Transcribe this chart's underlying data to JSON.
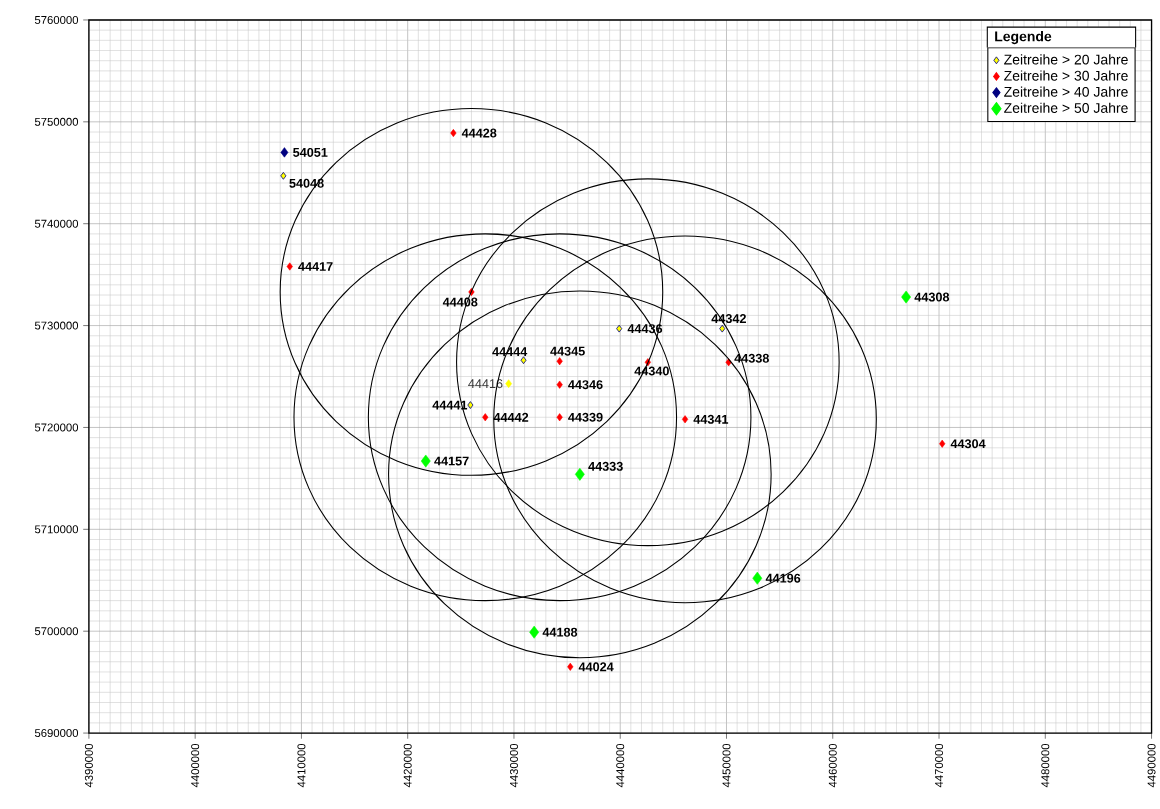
{
  "chart_data": {
    "type": "scatter",
    "legend_title": "Legende",
    "legend": "top right",
    "grid": true,
    "marker": "diamond",
    "xlim": [
      4390000,
      4490000
    ],
    "ylim": [
      5690000,
      5760000
    ],
    "xticks": [
      4390000,
      4400000,
      4410000,
      4420000,
      4430000,
      4440000,
      4450000,
      4460000,
      4470000,
      4480000,
      4490000
    ],
    "yticks": [
      5690000,
      5700000,
      5710000,
      5720000,
      5730000,
      5740000,
      5750000,
      5760000
    ],
    "series": [
      {
        "name": "Zeitreihe > 20 Jahre",
        "color": "#ffff00",
        "x": [
          4408300,
          4430900,
          4439900,
          4449600,
          4425900
        ],
        "values": [
          5744700,
          5726600,
          5729700,
          5729700,
          5722200
        ]
      },
      {
        "name": "Zeitreihe > 30 Jahre",
        "color": "#ff0000",
        "x": [
          4424300,
          4408900,
          4426000,
          4434300,
          4434300,
          4442600,
          4450200,
          4427300,
          4434300,
          4446100,
          4435300,
          4470300
        ],
        "values": [
          5748900,
          5735800,
          5733300,
          5726500,
          5724200,
          5726400,
          5726400,
          5721000,
          5721000,
          5720800,
          5696500,
          5718400
        ]
      },
      {
        "name": "Zeitreihe > 40 Jahre",
        "color": "#000080",
        "x": [
          4408400
        ],
        "values": [
          5747000
        ]
      },
      {
        "name": "Zeitreihe > 50 Jahre",
        "color": "#00ff00",
        "x": [
          4421700,
          4436200,
          4431900,
          4452900,
          4466900
        ],
        "values": [
          5716700,
          5715400,
          5699900,
          5705200,
          5732800
        ]
      },
      {
        "color": "#ffff00",
        "x": [
          4429500
        ],
        "values": [
          5724300
        ]
      }
    ],
    "annotations": [
      {
        "text": "54051",
        "x": 4408400,
        "y": 5747000
      },
      {
        "text": "54048",
        "x": 4408300,
        "y": 5744700
      },
      {
        "text": "44428",
        "x": 4424300,
        "y": 5748900
      },
      {
        "text": "44417",
        "x": 4408900,
        "y": 5735800
      },
      {
        "text": "44408",
        "x": 4426000,
        "y": 5733300
      },
      {
        "text": "44444",
        "x": 4430900,
        "y": 5726600
      },
      {
        "text": "44416",
        "x": 4429500,
        "y": 5724300
      },
      {
        "text": "44345",
        "x": 4434300,
        "y": 5726500
      },
      {
        "text": "44346",
        "x": 4434300,
        "y": 5724200
      },
      {
        "text": "44436",
        "x": 4439900,
        "y": 5729700
      },
      {
        "text": "44340",
        "x": 4442600,
        "y": 5726400
      },
      {
        "text": "44342",
        "x": 4449600,
        "y": 5729700
      },
      {
        "text": "44338",
        "x": 4450200,
        "y": 5726400
      },
      {
        "text": "44441",
        "x": 4425900,
        "y": 5722200
      },
      {
        "text": "44442",
        "x": 4427300,
        "y": 5721000
      },
      {
        "text": "44339",
        "x": 4434300,
        "y": 5721000
      },
      {
        "text": "44341",
        "x": 4446100,
        "y": 5720800
      },
      {
        "text": "44157",
        "x": 4421700,
        "y": 5716700
      },
      {
        "text": "44333",
        "x": 4436200,
        "y": 5715400
      },
      {
        "text": "44188",
        "x": 4431900,
        "y": 5699900
      },
      {
        "text": "44024",
        "x": 4435300,
        "y": 5696500
      },
      {
        "text": "44196",
        "x": 4452900,
        "y": 5705200
      },
      {
        "text": "44308",
        "x": 4466900,
        "y": 5732800
      },
      {
        "text": "44304",
        "x": 4470300,
        "y": 5718400
      }
    ]
  }
}
